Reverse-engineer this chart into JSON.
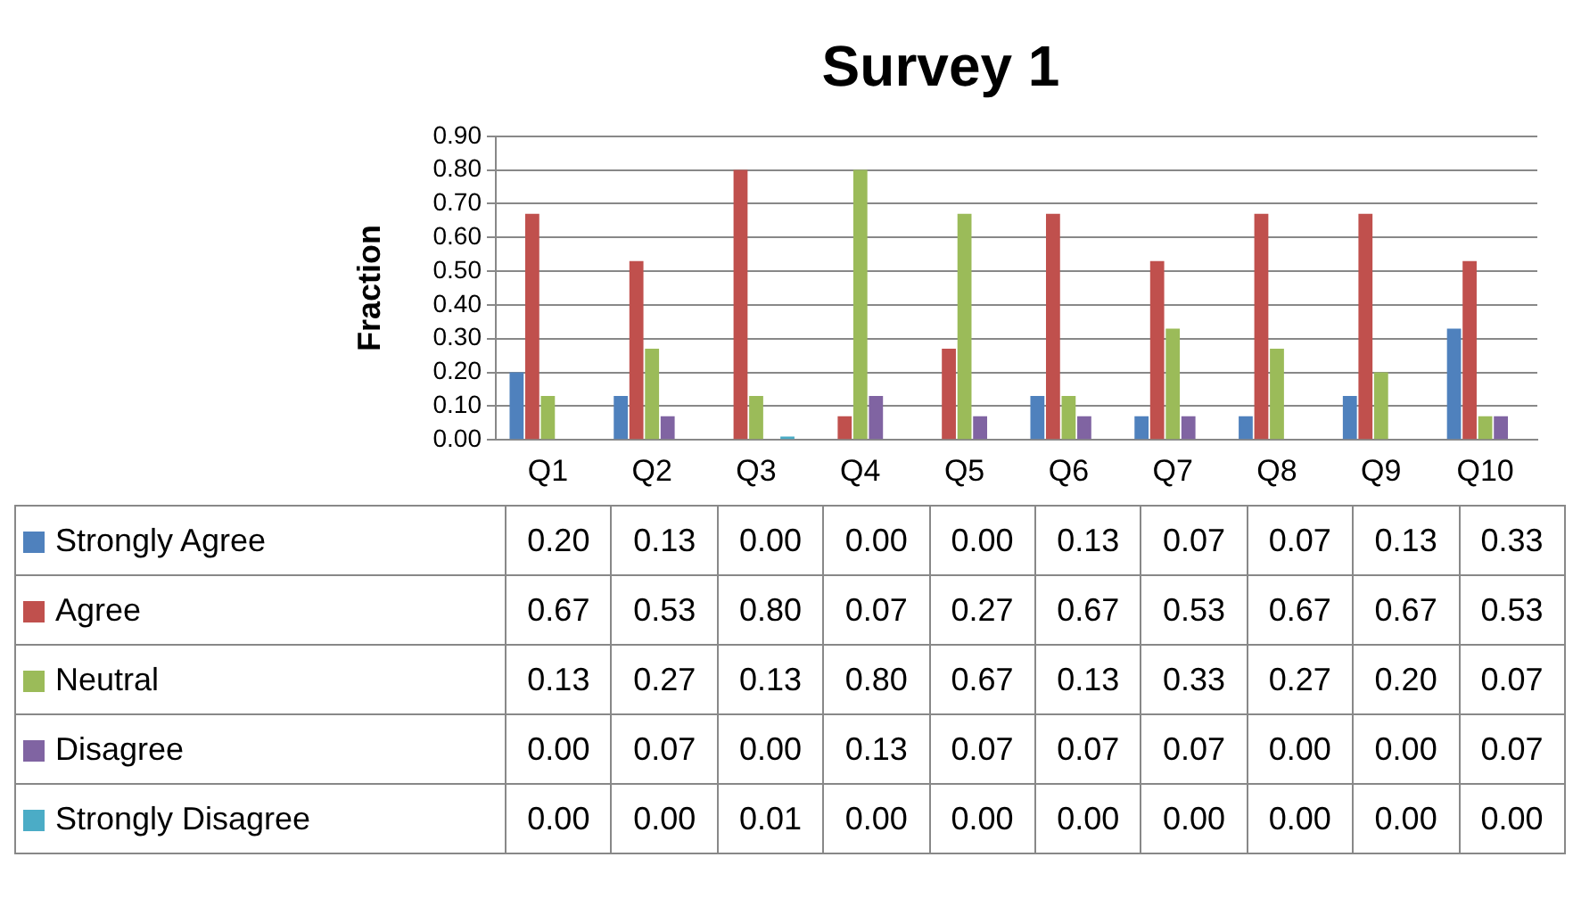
{
  "chart_data": {
    "type": "bar",
    "title": "Survey 1",
    "ylabel": "Fraction",
    "categories": [
      "Q1",
      "Q2",
      "Q3",
      "Q4",
      "Q5",
      "Q6",
      "Q7",
      "Q8",
      "Q9",
      "Q10"
    ],
    "ylim": [
      0,
      0.9
    ],
    "yticks": [
      {
        "value": 0,
        "label": "0.00"
      },
      {
        "value": 0.1,
        "label": "0.10"
      },
      {
        "value": 0.2,
        "label": "0.20"
      },
      {
        "value": 0.3,
        "label": "0.30"
      },
      {
        "value": 0.4,
        "label": "0.40"
      },
      {
        "value": 0.5,
        "label": "0.50"
      },
      {
        "value": 0.6,
        "label": "0.60"
      },
      {
        "value": 0.7,
        "label": "0.70"
      },
      {
        "value": 0.8,
        "label": "0.80"
      },
      {
        "value": 0.9,
        "label": "0.90"
      }
    ],
    "grid": "y",
    "legend": "bottom left",
    "series": [
      {
        "name": "Strongly Agree",
        "color": "#4f81bd",
        "values": [
          0.2,
          0.13,
          0,
          0,
          0,
          0.13,
          0.07,
          0.07,
          0.13,
          0.33
        ],
        "value_labels": [
          "0.20",
          "0.13",
          "0.00",
          "0.00",
          "0.00",
          "0.13",
          "0.07",
          "0.07",
          "0.13",
          "0.33"
        ]
      },
      {
        "name": "Agree",
        "color": "#c0504d",
        "values": [
          0.67,
          0.53,
          0.8,
          0.07,
          0.27,
          0.67,
          0.53,
          0.67,
          0.67,
          0.53
        ],
        "value_labels": [
          "0.67",
          "0.53",
          "0.80",
          "0.07",
          "0.27",
          "0.67",
          "0.53",
          "0.67",
          "0.67",
          "0.53"
        ]
      },
      {
        "name": "Neutral",
        "color": "#9bbb59",
        "values": [
          0.13,
          0.27,
          0.13,
          0.8,
          0.67,
          0.13,
          0.33,
          0.27,
          0.2,
          0.07
        ],
        "value_labels": [
          "0.13",
          "0.27",
          "0.13",
          "0.80",
          "0.67",
          "0.13",
          "0.33",
          "0.27",
          "0.20",
          "0.07"
        ]
      },
      {
        "name": "Disagree",
        "color": "#8064a2",
        "values": [
          0,
          0.07,
          0,
          0.13,
          0.07,
          0.07,
          0.07,
          0,
          0,
          0.07
        ],
        "value_labels": [
          "0.00",
          "0.07",
          "0.00",
          "0.13",
          "0.07",
          "0.07",
          "0.07",
          "0.00",
          "0.00",
          "0.07"
        ]
      },
      {
        "name": "Strongly Disagree",
        "color": "#4bacc6",
        "values": [
          0,
          0,
          0.01,
          0,
          0,
          0,
          0,
          0,
          0,
          0
        ],
        "value_labels": [
          "0.00",
          "0.00",
          "0.01",
          "0.00",
          "0.00",
          "0.00",
          "0.00",
          "0.00",
          "0.00",
          "0.00"
        ]
      }
    ]
  }
}
